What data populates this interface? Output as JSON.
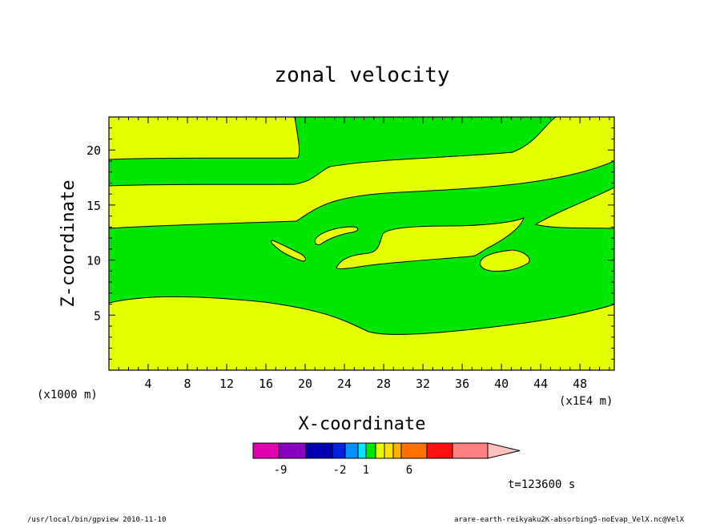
{
  "chart_data": {
    "type": "contour",
    "title": "zonal velocity",
    "xlabel": "X-coordinate",
    "ylabel": "Z-coordinate",
    "x_unit": "(x1E4 m)",
    "y_unit": "(x1000 m)",
    "xlim": [
      0,
      51.5
    ],
    "ylim": [
      0,
      23
    ],
    "xticks": [
      "4",
      "8",
      "12",
      "16",
      "20",
      "24",
      "28",
      "32",
      "36",
      "40",
      "44",
      "48"
    ],
    "yticks": [
      "5",
      "10",
      "15",
      "20"
    ],
    "regions": [
      {
        "level": "0 to 1",
        "color": "#e6ff00",
        "role": "background"
      },
      {
        "level": "-1 to 0",
        "color": "#00e600",
        "role": "bands"
      }
    ],
    "colorbar": {
      "labels": [
        "-9",
        "-2",
        "1",
        "6"
      ],
      "colors": [
        "#e000b0",
        "#8a00c0",
        "#0000b0",
        "#0020e0",
        "#0090ff",
        "#00e8ff",
        "#00e600",
        "#e6ff00",
        "#ffe000",
        "#ffb000",
        "#ff7000",
        "#ff1010",
        "#ff8080",
        "#ffc0c0"
      ]
    },
    "time_label": "t=123600 s"
  },
  "footer": {
    "left": "/usr/local/bin/gpview  2010-11-10",
    "right": "arare-earth-reikyaku2K-absorbing5-noEvap_VelX.nc@VelX"
  }
}
